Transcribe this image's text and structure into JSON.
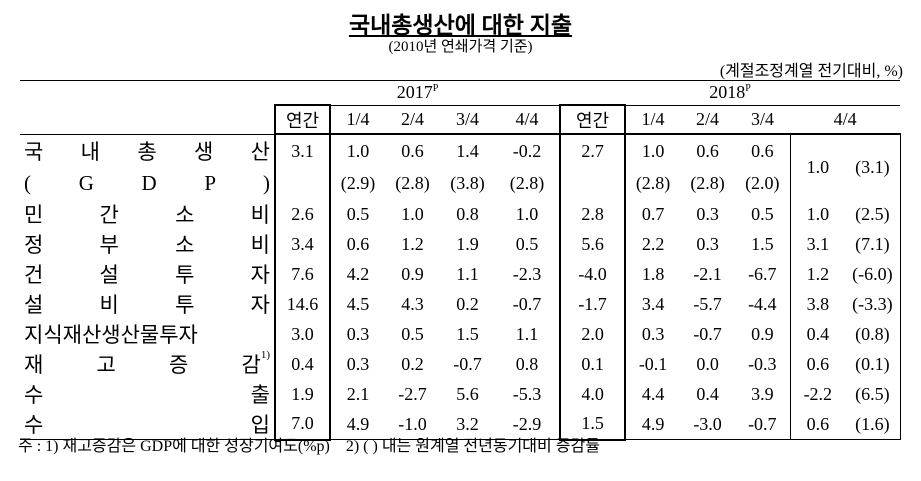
{
  "title": "국내총생산에 대한 지출",
  "subtitle": "(2010년 연쇄가격 기준)",
  "unit": "(계절조정계열 전기대비, %)",
  "table": {
    "years": [
      {
        "text": "2017",
        "sup": "P"
      },
      {
        "text": "2018",
        "sup": "P"
      }
    ],
    "col_headers": [
      "연간",
      "1/4",
      "2/4",
      "3/4",
      "4/4",
      "연간",
      "1/4",
      "2/4",
      "3/4",
      "4/4"
    ],
    "rows": [
      {
        "label": "국 내 총 생 산",
        "sublabel": "( G D P )",
        "values": [
          "3.1",
          "1.0",
          "0.6",
          "1.4",
          "-0.2",
          "2.7",
          "1.0",
          "0.6",
          "0.6",
          "1.0",
          "(3.1)"
        ],
        "values2": [
          null,
          "(2.9)",
          "(2.8)",
          "(3.8)",
          "(2.8)",
          null,
          "(2.8)",
          "(2.8)",
          "(2.0)"
        ]
      },
      {
        "label": "민 간 소 비",
        "values": [
          "2.6",
          "0.5",
          "1.0",
          "0.8",
          "1.0",
          "2.8",
          "0.7",
          "0.3",
          "0.5",
          "1.0",
          "(2.5)"
        ]
      },
      {
        "label": "정 부 소 비",
        "values": [
          "3.4",
          "0.6",
          "1.2",
          "1.9",
          "0.5",
          "5.6",
          "2.2",
          "0.3",
          "1.5",
          "3.1",
          "(7.1)"
        ]
      },
      {
        "label": "건 설 투 자",
        "values": [
          "7.6",
          "4.2",
          "0.9",
          "1.1",
          "-2.3",
          "-4.0",
          "1.8",
          "-2.1",
          "-6.7",
          "1.2",
          "(-6.0)"
        ]
      },
      {
        "label": "설 비 투 자",
        "values": [
          "14.6",
          "4.5",
          "4.3",
          "0.2",
          "-0.7",
          "-1.7",
          "3.4",
          "-5.7",
          "-4.4",
          "3.8",
          "(-3.3)"
        ]
      },
      {
        "label": "지식재산생산물투자",
        "values": [
          "3.0",
          "0.3",
          "0.5",
          "1.5",
          "1.1",
          "2.0",
          "0.3",
          "-0.7",
          "0.9",
          "0.4",
          "(0.8)"
        ]
      },
      {
        "label": "재 고 증 감",
        "note": "1)",
        "values": [
          "0.4",
          "0.3",
          "0.2",
          "-0.7",
          "0.8",
          "0.1",
          "-0.1",
          "0.0",
          "-0.3",
          "0.6",
          "(0.1)"
        ]
      },
      {
        "label": "수 출",
        "values": [
          "1.9",
          "2.1",
          "-2.7",
          "5.6",
          "-5.3",
          "4.0",
          "4.4",
          "0.4",
          "3.9",
          "-2.2",
          "(6.5)"
        ]
      },
      {
        "label": "수 입",
        "values": [
          "7.0",
          "4.9",
          "-1.0",
          "3.2",
          "-2.9",
          "1.5",
          "4.9",
          "-3.0",
          "-0.7",
          "0.6",
          "(1.6)"
        ]
      }
    ]
  },
  "footnote": "주 : 1) 재고증감은 GDP에 대한 성장기여도(%p)    2) ( ) 내는 원계열 전년동기대비 증감률"
}
